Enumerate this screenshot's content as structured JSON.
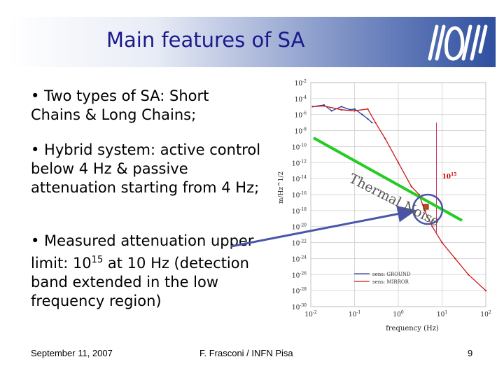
{
  "slide": {
    "title": "Main features of SA",
    "bullets": [
      "• Two types of SA: Short Chains & Long Chains;",
      "• Hybrid system: active control below 4 Hz & passive attenuation starting from 4 Hz;",
      "• Measured attenuation upper limit: 1015 at 10 Hz (detection band extended in the low frequency region)"
    ],
    "bullet3": {
      "before": "• Measured attenuation upper limit: 10",
      "sup": "15",
      "after": " at 10 Hz (detection band extended in the low frequency region)"
    },
    "footer": {
      "date": "September 11, 2007",
      "author": "F. Frasconi / INFN Pisa",
      "page": "9"
    }
  },
  "chart_data": {
    "type": "line",
    "xlabel": "frequency (Hz)",
    "ylabel": "m/Hz^1/2",
    "xscale": "log",
    "yscale": "log",
    "xlim": [
      0.01,
      100
    ],
    "ylim": [
      1e-30,
      0.01
    ],
    "x_ticks": [
      "10^-2",
      "10^-1",
      "10^0",
      "10^1",
      "10^2"
    ],
    "y_ticks": [
      "10^-2",
      "10^-4",
      "10^-6",
      "10^-8",
      "10^-10",
      "10^-12",
      "10^-14",
      "10^-16",
      "10^-18",
      "10^-20",
      "10^-22",
      "10^-24",
      "10^-26",
      "10^-28",
      "10^-30"
    ],
    "series": [
      {
        "name": "sens: GROUND",
        "color": "#2b3fa0",
        "x": [
          0.011,
          0.02,
          0.03,
          0.05,
          0.08,
          0.1,
          0.15,
          0.2,
          0.25
        ],
        "y": [
          1e-05,
          1.6e-05,
          3e-06,
          1e-05,
          4e-06,
          5e-06,
          1e-06,
          3e-07,
          1e-07
        ]
      },
      {
        "name": "sens: MIRROR",
        "color": "#cc1a1a",
        "x": [
          0.011,
          0.02,
          0.05,
          0.1,
          0.2,
          0.3,
          0.5,
          1,
          2,
          3,
          4,
          6,
          10,
          20,
          40,
          100
        ],
        "y": [
          1e-05,
          1.2e-05,
          4e-06,
          3e-06,
          5e-06,
          1e-07,
          1e-09,
          1e-12,
          1e-15,
          1e-16,
          1e-18,
          1e-20,
          1e-22,
          1e-24,
          1e-26,
          1e-28
        ]
      }
    ],
    "annotations": {
      "thermal_noise": "Thermal Noise",
      "attenuation": "10^15"
    }
  }
}
